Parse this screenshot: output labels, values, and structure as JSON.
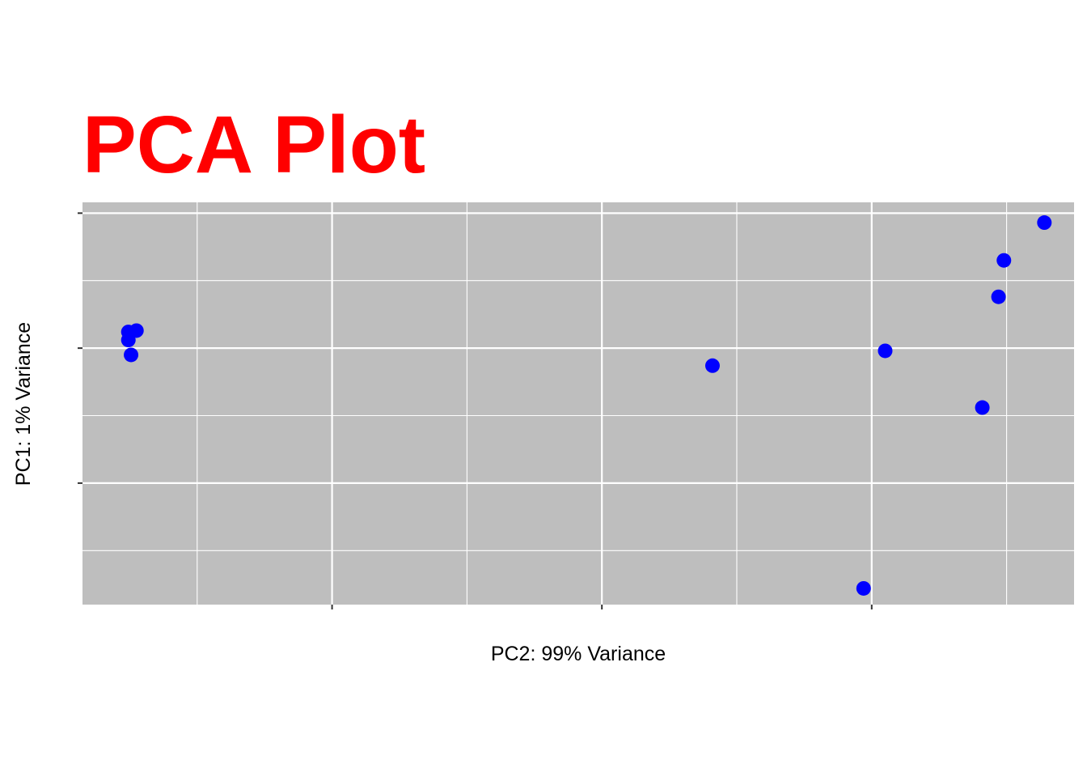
{
  "chart_data": {
    "type": "scatter",
    "title": "PCA Plot",
    "xlabel": "PC2: 99% Variance",
    "ylabel": "PC1: 1% Variance",
    "xlim": [
      -4.85,
      2.5
    ],
    "ylim": [
      -1.9,
      1.08
    ],
    "x_major_ticks": [
      -3,
      -1,
      1
    ],
    "x_minor_gridlines": [
      -4,
      -2,
      0,
      2
    ],
    "y_major_ticks": [
      -1,
      0,
      1
    ],
    "y_minor_gridlines": [
      -1.5,
      -0.5,
      0.5
    ],
    "grid": true,
    "tick_labels_shown": false,
    "legend": "none",
    "colors": {
      "title": "#ff0000",
      "points": "#0000ff",
      "panel_background": "#bebebe",
      "gridlines": "#ffffff"
    },
    "series": [
      {
        "points": [
          {
            "x": -4.51,
            "y": 0.12
          },
          {
            "x": -4.51,
            "y": 0.06
          },
          {
            "x": -4.45,
            "y": 0.13
          },
          {
            "x": -4.49,
            "y": -0.05
          },
          {
            "x": -0.18,
            "y": -0.13
          },
          {
            "x": 0.94,
            "y": -1.78
          },
          {
            "x": 1.1,
            "y": -0.02
          },
          {
            "x": 1.82,
            "y": -0.44
          },
          {
            "x": 1.94,
            "y": 0.38
          },
          {
            "x": 1.98,
            "y": 0.65
          },
          {
            "x": 2.28,
            "y": 0.93
          }
        ]
      }
    ]
  }
}
